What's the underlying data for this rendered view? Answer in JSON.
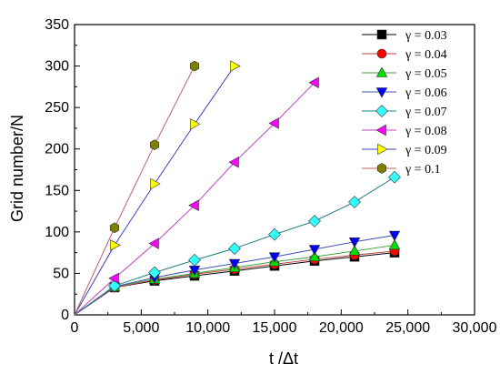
{
  "chart_data": {
    "type": "line",
    "xlabel": "t /Δt",
    "ylabel": "Grid number/N",
    "xlim": [
      0,
      30000
    ],
    "ylim": [
      0,
      350
    ],
    "xticks": [
      0,
      5000,
      10000,
      15000,
      20000,
      25000,
      30000
    ],
    "xtick_labels": [
      "0",
      "5,000",
      "10,000",
      "15,000",
      "20,000",
      "25,000",
      "30,000"
    ],
    "yticks": [
      0,
      50,
      100,
      150,
      200,
      250,
      300,
      350
    ],
    "ytick_labels": [
      "0",
      "50",
      "100",
      "150",
      "200",
      "250",
      "300",
      "350"
    ],
    "grid": false,
    "legend_position": "top-right",
    "series": [
      {
        "name": "γ = 0.03",
        "color": "#000000",
        "marker": "square",
        "line_color": "#000000",
        "x": [
          0,
          3000,
          6000,
          9000,
          12000,
          15000,
          18000,
          21000,
          24000
        ],
        "y": [
          0,
          33,
          41,
          47,
          53,
          59,
          65,
          70,
          75
        ]
      },
      {
        "name": "γ = 0.04",
        "color": "#ff0000",
        "marker": "circle",
        "line_color": "#c04040",
        "x": [
          0,
          3000,
          6000,
          9000,
          12000,
          15000,
          18000,
          21000,
          24000
        ],
        "y": [
          0,
          33,
          42,
          49,
          55,
          61,
          67,
          72,
          77
        ]
      },
      {
        "name": "γ = 0.05",
        "color": "#00dd00",
        "marker": "triangle-up",
        "line_color": "#40a040",
        "x": [
          0,
          3000,
          6000,
          9000,
          12000,
          15000,
          18000,
          21000,
          24000
        ],
        "y": [
          0,
          34,
          43,
          50,
          57,
          64,
          70,
          77,
          84
        ]
      },
      {
        "name": "γ = 0.06",
        "color": "#0000ee",
        "marker": "triangle-down",
        "line_color": "#4050b0",
        "x": [
          0,
          3000,
          6000,
          9000,
          12000,
          15000,
          18000,
          21000,
          24000
        ],
        "y": [
          0,
          34,
          45,
          54,
          62,
          70,
          79,
          88,
          96
        ]
      },
      {
        "name": "γ = 0.07",
        "color": "#33ffff",
        "marker": "diamond",
        "line_color": "#208080",
        "x": [
          0,
          3000,
          6000,
          9000,
          12000,
          15000,
          18000,
          21000,
          24000
        ],
        "y": [
          0,
          35,
          51,
          66,
          80,
          97,
          113,
          136,
          166
        ]
      },
      {
        "name": "γ = 0.08",
        "color": "#ff00ff",
        "marker": "triangle-left",
        "line_color": "#c040c0",
        "x": [
          0,
          3000,
          6000,
          9000,
          12000,
          15000,
          18000
        ],
        "y": [
          0,
          44,
          86,
          132,
          184,
          231,
          280
        ]
      },
      {
        "name": "γ = 0.09",
        "color": "#ffff00",
        "marker": "triangle-right",
        "line_color": "#4040c0",
        "x": [
          0,
          3000,
          6000,
          9000,
          12000
        ],
        "y": [
          0,
          84,
          158,
          230,
          300
        ]
      },
      {
        "name": "γ = 0.1",
        "color": "#808000",
        "marker": "hexagon",
        "line_color": "#c06060",
        "x": [
          0,
          3000,
          6000,
          9000
        ],
        "y": [
          0,
          105,
          205,
          300
        ]
      }
    ]
  }
}
